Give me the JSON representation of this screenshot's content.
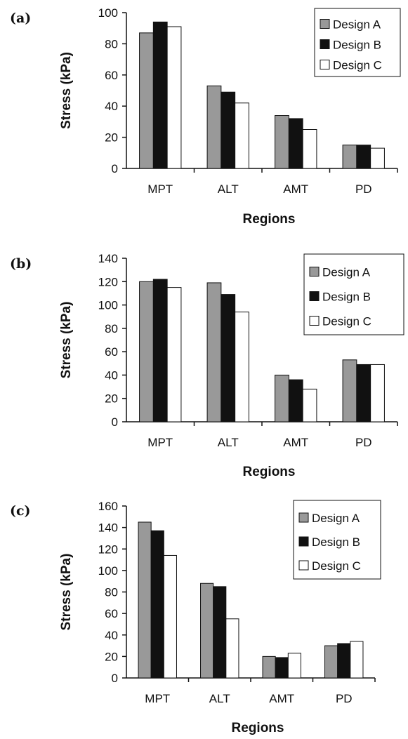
{
  "chart_data": [
    {
      "type": "bar",
      "panel_label": "(a)",
      "categories": [
        "MPT",
        "ALT",
        "AMT",
        "PD"
      ],
      "series": [
        {
          "name": "Design A",
          "values": [
            87,
            53,
            34,
            15
          ]
        },
        {
          "name": "Design B",
          "values": [
            94,
            49,
            32,
            15
          ]
        },
        {
          "name": "Design C",
          "values": [
            91,
            42,
            25,
            13
          ]
        }
      ],
      "xlabel": "Regions",
      "ylabel": "Stress (kPa)",
      "ylim": [
        0,
        100
      ],
      "yticks": [
        0,
        20,
        40,
        60,
        80,
        100
      ],
      "legend": "top-right",
      "grid": false
    },
    {
      "type": "bar",
      "panel_label": "(b)",
      "categories": [
        "MPT",
        "ALT",
        "AMT",
        "PD"
      ],
      "series": [
        {
          "name": "Design A",
          "values": [
            120,
            119,
            40,
            53
          ]
        },
        {
          "name": "Design B",
          "values": [
            122,
            109,
            36,
            49
          ]
        },
        {
          "name": "Design C",
          "values": [
            115,
            94,
            28,
            49
          ]
        }
      ],
      "xlabel": "Regions",
      "ylabel": "Stress (kPa)",
      "ylim": [
        0,
        140
      ],
      "yticks": [
        0,
        20,
        40,
        60,
        80,
        100,
        120,
        140
      ],
      "legend": "top-right",
      "grid": false
    },
    {
      "type": "bar",
      "panel_label": "(c)",
      "categories": [
        "MPT",
        "ALT",
        "AMT",
        "PD"
      ],
      "series": [
        {
          "name": "Design A",
          "values": [
            145,
            88,
            20,
            30
          ]
        },
        {
          "name": "Design B",
          "values": [
            137,
            85,
            19,
            32
          ]
        },
        {
          "name": "Design C",
          "values": [
            114,
            55,
            23,
            34
          ]
        }
      ],
      "xlabel": "Regions",
      "ylabel": "Stress (kPa)",
      "ylim": [
        0,
        160
      ],
      "yticks": [
        0,
        20,
        40,
        60,
        80,
        100,
        120,
        140,
        160
      ],
      "legend": "top-right",
      "grid": false
    }
  ],
  "colors": {
    "Design A": "#999999",
    "Design B": "#111111",
    "Design C": "#ffffff"
  }
}
